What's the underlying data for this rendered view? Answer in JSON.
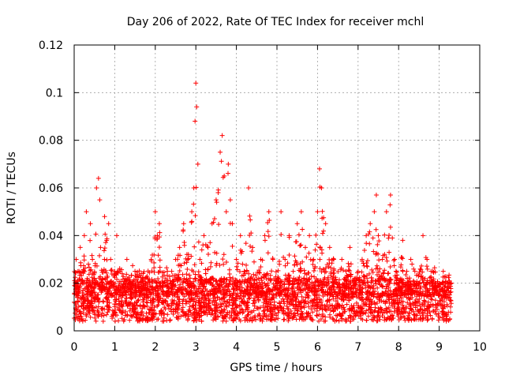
{
  "chart_data": {
    "type": "scatter",
    "title": "Day 206 of 2022, Rate Of TEC Index for receiver mchl",
    "xlabel": "GPS time / hours",
    "ylabel": "ROTI / TECUs",
    "xlim": [
      0,
      10
    ],
    "ylim": [
      0,
      0.12
    ],
    "xticks": [
      0,
      1,
      2,
      3,
      4,
      5,
      6,
      7,
      8,
      9,
      10
    ],
    "xtick_labels": [
      "0",
      "1",
      "2",
      "3",
      "4",
      "5",
      "6",
      "7",
      "8",
      "9",
      "10"
    ],
    "yticks": [
      0,
      0.02,
      0.04,
      0.06,
      0.08,
      0.1,
      0.12
    ],
    "ytick_labels": [
      "0",
      "0.02",
      "0.04",
      "0.06",
      "0.08",
      "0.1",
      "0.12"
    ],
    "grid": true,
    "marker": "+",
    "color": "#ff0000",
    "series": [
      {
        "name": "ROTI",
        "x": [
          0.0,
          0.05,
          0.1,
          0.12,
          0.15,
          0.2,
          0.25,
          0.3,
          0.35,
          0.4,
          0.45,
          0.5,
          0.55,
          0.6,
          0.63,
          0.65,
          0.7,
          0.75,
          0.8,
          0.85,
          0.9,
          0.95,
          1.0,
          1.05,
          1.1,
          1.2,
          1.3,
          1.4,
          1.5,
          1.6,
          1.7,
          1.8,
          1.9,
          2.0,
          2.05,
          2.1,
          2.2,
          2.3,
          2.4,
          2.5,
          2.6,
          2.7,
          2.8,
          2.9,
          2.95,
          2.98,
          3.0,
          3.02,
          3.05,
          3.1,
          3.2,
          3.3,
          3.4,
          3.5,
          3.55,
          3.6,
          3.65,
          3.7,
          3.75,
          3.8,
          3.85,
          3.9,
          4.0,
          4.1,
          4.2,
          4.3,
          4.4,
          4.5,
          4.6,
          4.7,
          4.8,
          4.9,
          5.0,
          5.1,
          5.2,
          5.3,
          5.4,
          5.5,
          5.6,
          5.7,
          5.8,
          5.9,
          6.0,
          6.05,
          6.1,
          6.2,
          6.3,
          6.4,
          6.5,
          6.6,
          6.7,
          6.8,
          6.9,
          7.0,
          7.1,
          7.2,
          7.3,
          7.4,
          7.45,
          7.5,
          7.6,
          7.7,
          7.8,
          7.9,
          8.0,
          8.1,
          8.2,
          8.3,
          8.4,
          8.5,
          8.6,
          8.7,
          8.8,
          8.9,
          9.0,
          9.1,
          9.2,
          9.25
        ],
        "y": [
          0.012,
          0.03,
          0.018,
          0.025,
          0.035,
          0.02,
          0.04,
          0.05,
          0.028,
          0.045,
          0.03,
          0.022,
          0.06,
          0.064,
          0.055,
          0.035,
          0.02,
          0.048,
          0.038,
          0.045,
          0.03,
          0.015,
          0.025,
          0.04,
          0.018,
          0.015,
          0.03,
          0.02,
          0.025,
          0.015,
          0.022,
          0.018,
          0.03,
          0.05,
          0.04,
          0.045,
          0.02,
          0.025,
          0.018,
          0.03,
          0.035,
          0.045,
          0.03,
          0.05,
          0.06,
          0.088,
          0.104,
          0.094,
          0.07,
          0.03,
          0.04,
          0.035,
          0.045,
          0.055,
          0.058,
          0.075,
          0.082,
          0.065,
          0.05,
          0.07,
          0.055,
          0.045,
          0.03,
          0.04,
          0.025,
          0.06,
          0.035,
          0.02,
          0.03,
          0.04,
          0.05,
          0.03,
          0.02,
          0.05,
          0.03,
          0.04,
          0.025,
          0.045,
          0.05,
          0.035,
          0.04,
          0.03,
          0.05,
          0.068,
          0.06,
          0.045,
          0.035,
          0.03,
          0.02,
          0.03,
          0.025,
          0.035,
          0.02,
          0.025,
          0.03,
          0.04,
          0.045,
          0.05,
          0.057,
          0.04,
          0.03,
          0.05,
          0.057,
          0.03,
          0.02,
          0.038,
          0.025,
          0.03,
          0.025,
          0.02,
          0.04,
          0.03,
          0.025,
          0.02,
          0.015,
          0.025,
          0.02,
          0.021
        ]
      }
    ],
    "notes": "Dense scatter; the listed points are the peak/envelope values read from the plot. The script also draws a dense background band of points (≈0.005–0.025 TECU) across 0–9.3 h."
  }
}
